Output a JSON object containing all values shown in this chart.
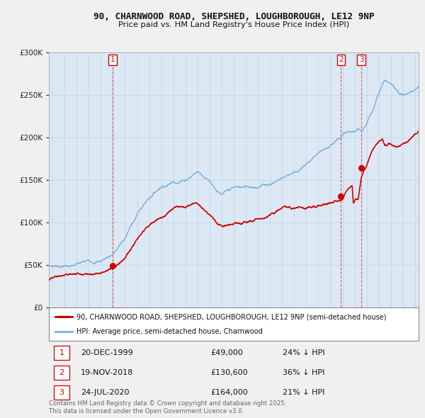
{
  "title": "90, CHARNWOOD ROAD, SHEPSHED, LOUGHBOROUGH, LE12 9NP",
  "subtitle": "Price paid vs. HM Land Registry's House Price Index (HPI)",
  "bg_color": "#dce9f5",
  "plot_bg": "#dce9f5",
  "transactions": [
    {
      "num": 1,
      "date_label": "20-DEC-1999",
      "date_x": 2000.0,
      "price": 49000,
      "pct": "24% ↓ HPI"
    },
    {
      "num": 2,
      "date_label": "19-NOV-2018",
      "date_x": 2018.88,
      "price": 130600,
      "pct": "36% ↓ HPI"
    },
    {
      "num": 3,
      "date_label": "24-JUL-2020",
      "date_x": 2020.56,
      "price": 164000,
      "pct": "21% ↓ HPI"
    }
  ],
  "legend_line1": "90, CHARNWOOD ROAD, SHEPSHED, LOUGHBOROUGH, LE12 9NP (semi-detached house)",
  "legend_line2": "HPI: Average price, semi-detached house, Charnwood",
  "footer": "Contains HM Land Registry data © Crown copyright and database right 2025.\nThis data is licensed under the Open Government Licence v3.0.",
  "ylim": [
    0,
    300000
  ],
  "xlim": [
    1994.7,
    2025.3
  ],
  "red_color": "#cc0000",
  "blue_color": "#7bafd4",
  "grid_color": "#c0d0e0",
  "outer_bg": "#f0f0f0"
}
